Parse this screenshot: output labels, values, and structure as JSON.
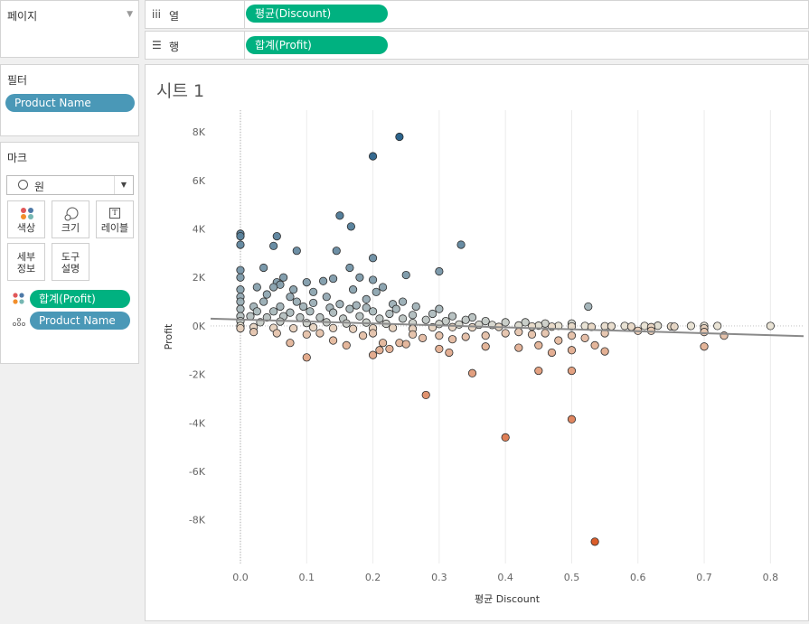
{
  "pages": {
    "title": "페이지"
  },
  "columns": {
    "icon": "iii",
    "label": "열",
    "pill": "평균(Discount)"
  },
  "rows": {
    "icon": "☰",
    "label": "행",
    "pill": "합계(Profit)"
  },
  "filters": {
    "title": "필터",
    "pill": "Product Name"
  },
  "marks": {
    "title": "마크",
    "type_icon": "circle-outline-icon",
    "type_label": "원",
    "buttons": {
      "color": "색상",
      "size": "크기",
      "label": "레이블",
      "detail_1": "세부",
      "detail_2": "정보",
      "tooltip_1": "도구",
      "tooltip_2": "설명"
    },
    "color_pill": "합계(Profit)",
    "detail_pill": "Product Name"
  },
  "sheet": {
    "title": "시트 1"
  },
  "chart_data": {
    "type": "scatter",
    "xlabel": "평균 Discount",
    "ylabel": "Profit",
    "xlim": [
      -0.045,
      0.85
    ],
    "ylim": [
      -9800,
      8900
    ],
    "x_ticks": [
      "0.0",
      "0.1",
      "0.2",
      "0.3",
      "0.4",
      "0.5",
      "0.6",
      "0.7",
      "0.8"
    ],
    "y_ticks": [
      "8K",
      "6K",
      "4K",
      "2K",
      "0K",
      "-2K",
      "-4K",
      "-6K",
      "-8K"
    ],
    "x_tick_values": [
      0,
      0.1,
      0.2,
      0.3,
      0.4,
      0.5,
      0.6,
      0.7,
      0.8
    ],
    "y_tick_values": [
      8000,
      6000,
      4000,
      2000,
      0,
      -2000,
      -4000,
      -6000,
      -8000
    ],
    "grid": true,
    "trend_line": {
      "x": [
        -0.045,
        0.85
      ],
      "y": [
        300,
        -420
      ]
    },
    "color_scale": {
      "negative": "#d9531e",
      "neutral": "#e8e2d3",
      "positive": "#1f5a85"
    },
    "points": [
      [
        0.24,
        7800
      ],
      [
        0.2,
        7000
      ],
      [
        0.15,
        4550
      ],
      [
        0.167,
        4100
      ],
      [
        0.0,
        3800
      ],
      [
        0.0,
        3700
      ],
      [
        0.055,
        3700
      ],
      [
        0.0,
        3350
      ],
      [
        0.333,
        3350
      ],
      [
        0.05,
        3300
      ],
      [
        0.085,
        3100
      ],
      [
        0.145,
        3100
      ],
      [
        0.2,
        2800
      ],
      [
        0.165,
        2400
      ],
      [
        0.035,
        2400
      ],
      [
        0.0,
        2300
      ],
      [
        0.3,
        2250
      ],
      [
        0.25,
        2100
      ],
      [
        0.18,
        2000
      ],
      [
        0.065,
        2000
      ],
      [
        0.0,
        2000
      ],
      [
        0.2,
        1900
      ],
      [
        0.14,
        1950
      ],
      [
        0.125,
        1850
      ],
      [
        0.055,
        1800
      ],
      [
        0.06,
        1700
      ],
      [
        0.1,
        1800
      ],
      [
        0.215,
        1600
      ],
      [
        0.0,
        1500
      ],
      [
        0.025,
        1600
      ],
      [
        0.05,
        1600
      ],
      [
        0.08,
        1500
      ],
      [
        0.11,
        1400
      ],
      [
        0.17,
        1500
      ],
      [
        0.205,
        1400
      ],
      [
        0.04,
        1300
      ],
      [
        0.0,
        1200
      ],
      [
        0.075,
        1200
      ],
      [
        0.13,
        1200
      ],
      [
        0.19,
        1100
      ],
      [
        0.245,
        1000
      ],
      [
        0.085,
        1000
      ],
      [
        0.035,
        1000
      ],
      [
        0.0,
        1000
      ],
      [
        0.11,
        950
      ],
      [
        0.15,
        900
      ],
      [
        0.175,
        850
      ],
      [
        0.23,
        900
      ],
      [
        0.02,
        800
      ],
      [
        0.06,
        800
      ],
      [
        0.095,
        800
      ],
      [
        0.135,
        750
      ],
      [
        0.165,
        700
      ],
      [
        0.19,
        750
      ],
      [
        0.235,
        700
      ],
      [
        0.265,
        800
      ],
      [
        0.3,
        700
      ],
      [
        0.525,
        800
      ],
      [
        0.0,
        700
      ],
      [
        0.025,
        600
      ],
      [
        0.05,
        600
      ],
      [
        0.075,
        550
      ],
      [
        0.105,
        600
      ],
      [
        0.14,
        550
      ],
      [
        0.2,
        600
      ],
      [
        0.225,
        500
      ],
      [
        0.26,
        450
      ],
      [
        0.29,
        500
      ],
      [
        0.32,
        400
      ],
      [
        0.35,
        350
      ],
      [
        0.0,
        400
      ],
      [
        0.015,
        400
      ],
      [
        0.04,
        350
      ],
      [
        0.065,
        400
      ],
      [
        0.09,
        350
      ],
      [
        0.12,
        350
      ],
      [
        0.155,
        300
      ],
      [
        0.18,
        400
      ],
      [
        0.21,
        300
      ],
      [
        0.245,
        300
      ],
      [
        0.28,
        250
      ],
      [
        0.31,
        200
      ],
      [
        0.34,
        250
      ],
      [
        0.37,
        200
      ],
      [
        0.4,
        150
      ],
      [
        0.43,
        150
      ],
      [
        0.46,
        100
      ],
      [
        0.5,
        100
      ],
      [
        0.0,
        200
      ],
      [
        0.03,
        150
      ],
      [
        0.06,
        180
      ],
      [
        0.1,
        120
      ],
      [
        0.13,
        150
      ],
      [
        0.16,
        100
      ],
      [
        0.19,
        140
      ],
      [
        0.22,
        90
      ],
      [
        0.26,
        120
      ],
      [
        0.3,
        80
      ],
      [
        0.33,
        60
      ],
      [
        0.36,
        50
      ],
      [
        0.38,
        40
      ],
      [
        0.42,
        20
      ],
      [
        0.45,
        10
      ],
      [
        0.48,
        0
      ],
      [
        0.52,
        0
      ],
      [
        0.55,
        -10
      ],
      [
        0.58,
        0
      ],
      [
        0.61,
        0
      ],
      [
        0.63,
        10
      ],
      [
        0.65,
        -20
      ],
      [
        0.68,
        0
      ],
      [
        0.7,
        0
      ],
      [
        0.72,
        0
      ],
      [
        0.8,
        0
      ],
      [
        0.0,
        0
      ],
      [
        0.02,
        -50
      ],
      [
        0.05,
        -80
      ],
      [
        0.08,
        -100
      ],
      [
        0.11,
        -60
      ],
      [
        0.14,
        -90
      ],
      [
        0.17,
        -120
      ],
      [
        0.2,
        -100
      ],
      [
        0.23,
        -80
      ],
      [
        0.26,
        -120
      ],
      [
        0.29,
        -60
      ],
      [
        0.32,
        -50
      ],
      [
        0.35,
        -60
      ],
      [
        0.39,
        -40
      ],
      [
        0.44,
        -20
      ],
      [
        0.47,
        -30
      ],
      [
        0.5,
        -20
      ],
      [
        0.53,
        -40
      ],
      [
        0.56,
        -10
      ],
      [
        0.59,
        -30
      ],
      [
        0.62,
        -50
      ],
      [
        0.655,
        -30
      ],
      [
        0.7,
        -100
      ],
      [
        0.7,
        -250
      ],
      [
        0.73,
        -400
      ],
      [
        0.0,
        -100
      ],
      [
        0.02,
        -250
      ],
      [
        0.055,
        -300
      ],
      [
        0.075,
        -700
      ],
      [
        0.1,
        -350
      ],
      [
        0.12,
        -300
      ],
      [
        0.14,
        -600
      ],
      [
        0.16,
        -800
      ],
      [
        0.185,
        -400
      ],
      [
        0.2,
        -300
      ],
      [
        0.215,
        -700
      ],
      [
        0.24,
        -700
      ],
      [
        0.26,
        -350
      ],
      [
        0.275,
        -500
      ],
      [
        0.3,
        -400
      ],
      [
        0.32,
        -550
      ],
      [
        0.34,
        -450
      ],
      [
        0.37,
        -400
      ],
      [
        0.4,
        -300
      ],
      [
        0.42,
        -250
      ],
      [
        0.44,
        -350
      ],
      [
        0.46,
        -300
      ],
      [
        0.48,
        -600
      ],
      [
        0.5,
        -400
      ],
      [
        0.52,
        -500
      ],
      [
        0.55,
        -300
      ],
      [
        0.6,
        -200
      ],
      [
        0.62,
        -200
      ],
      [
        0.7,
        -850
      ],
      [
        0.1,
        -1300
      ],
      [
        0.2,
        -1200
      ],
      [
        0.225,
        -950
      ],
      [
        0.21,
        -1000
      ],
      [
        0.25,
        -750
      ],
      [
        0.3,
        -950
      ],
      [
        0.315,
        -1100
      ],
      [
        0.37,
        -850
      ],
      [
        0.42,
        -900
      ],
      [
        0.45,
        -800
      ],
      [
        0.47,
        -1100
      ],
      [
        0.5,
        -1000
      ],
      [
        0.535,
        -800
      ],
      [
        0.55,
        -1050
      ],
      [
        0.35,
        -1950
      ],
      [
        0.45,
        -1850
      ],
      [
        0.5,
        -1850
      ],
      [
        0.28,
        -2850
      ],
      [
        0.5,
        -3850
      ],
      [
        0.4,
        -4600
      ],
      [
        0.535,
        -8900
      ]
    ]
  }
}
